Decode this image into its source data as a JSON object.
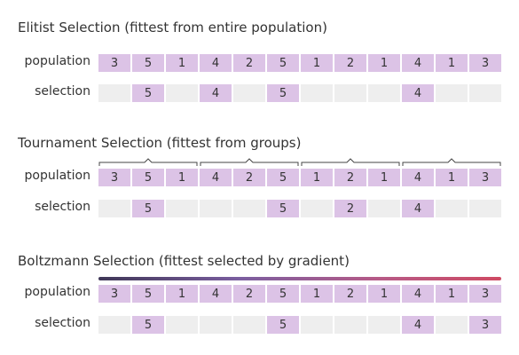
{
  "colors": {
    "selected_cell": "#dcc3e6",
    "empty_cell": "#eeeeee",
    "gradient_start": "#3f3757",
    "gradient_end": "#cf4a63"
  },
  "sections": [
    {
      "title": "Elitist Selection (fittest from entire population)",
      "population_label": "population",
      "selection_label": "selection",
      "population": [
        "3",
        "5",
        "1",
        "4",
        "2",
        "5",
        "1",
        "2",
        "1",
        "4",
        "1",
        "3"
      ],
      "selection": [
        "",
        "5",
        "",
        "4",
        "",
        "5",
        "",
        "",
        "",
        "4",
        "",
        ""
      ]
    },
    {
      "title": "Tournament Selection (fittest from groups)",
      "population_label": "population",
      "selection_label": "selection",
      "group_size": 3,
      "population": [
        "3",
        "5",
        "1",
        "4",
        "2",
        "5",
        "1",
        "2",
        "1",
        "4",
        "1",
        "3"
      ],
      "selection": [
        "",
        "5",
        "",
        "",
        "",
        "5",
        "",
        "2",
        "",
        "4",
        "",
        ""
      ]
    },
    {
      "title": "Boltzmann Selection (fittest selected by gradient)",
      "population_label": "population",
      "selection_label": "selection",
      "population": [
        "3",
        "5",
        "1",
        "4",
        "2",
        "5",
        "1",
        "2",
        "1",
        "4",
        "1",
        "3"
      ],
      "selection": [
        "",
        "5",
        "",
        "",
        "",
        "5",
        "",
        "",
        "",
        "4",
        "",
        "3"
      ]
    }
  ]
}
